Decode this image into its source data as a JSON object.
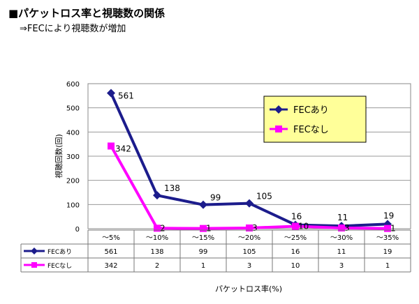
{
  "heading": {
    "title": "■パケットロス率と視聴数の関係",
    "subtitle": "⇒FECにより視聴数が増加"
  },
  "chart_data": {
    "type": "line",
    "title": "",
    "xlabel": "パケットロス率(%)",
    "ylabel": "視聴回数(回)",
    "ylim": [
      0,
      600
    ],
    "yticks": [
      0,
      100,
      200,
      300,
      400,
      500,
      600
    ],
    "grid": true,
    "legend": "top-right",
    "categories": [
      "～5%",
      "～10%",
      "～15%",
      "～20%",
      "～25%",
      "～30%",
      "～35%"
    ],
    "series": [
      {
        "name": "FECあり",
        "color": "#1c1c8c",
        "marker": "diamond",
        "values": [
          561,
          138,
          99,
          105,
          16,
          11,
          19
        ]
      },
      {
        "name": "FECなし",
        "color": "#ff00ff",
        "marker": "square",
        "values": [
          342,
          2,
          1,
          3,
          10,
          3,
          1
        ]
      }
    ],
    "data_table": {
      "rows": [
        {
          "name": "FECあり",
          "values": [
            "561",
            "138",
            "99",
            "105",
            "16",
            "11",
            "19"
          ]
        },
        {
          "name": "FECなし",
          "values": [
            "342",
            "2",
            "1",
            "3",
            "10",
            "3",
            "1"
          ]
        }
      ]
    }
  }
}
